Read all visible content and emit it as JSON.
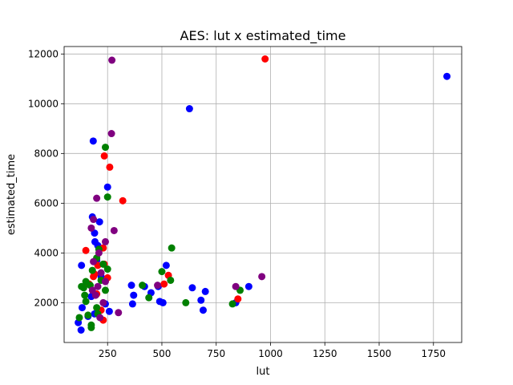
{
  "chart_data": {
    "type": "scatter",
    "title": "AES: lut x estimated_time",
    "xlabel": "lut",
    "ylabel": "estimated_time",
    "xlim": [
      50,
      1880
    ],
    "ylim": [
      400,
      12300
    ],
    "xticks": [
      250,
      500,
      750,
      1000,
      1250,
      1500,
      1750
    ],
    "yticks": [
      2000,
      4000,
      6000,
      8000,
      10000,
      12000
    ],
    "grid": true,
    "legend": "none",
    "series": [
      {
        "color": "#0000ff",
        "points": [
          [
            1812,
            11100
          ],
          [
            627,
            9800
          ],
          [
            184,
            8500
          ],
          [
            250,
            6650
          ],
          [
            213,
            5250
          ],
          [
            180,
            5450
          ],
          [
            192,
            4450
          ],
          [
            190,
            4800
          ],
          [
            130,
            3500
          ],
          [
            520,
            3500
          ],
          [
            360,
            2700
          ],
          [
            420,
            2650
          ],
          [
            370,
            2300
          ],
          [
            483,
            2650
          ],
          [
            640,
            2600
          ],
          [
            700,
            2450
          ],
          [
            900,
            2650
          ],
          [
            680,
            2100
          ],
          [
            490,
            2050
          ],
          [
            505,
            2000
          ],
          [
            690,
            1700
          ],
          [
            365,
            1950
          ],
          [
            240,
            1950
          ],
          [
            258,
            1650
          ],
          [
            133,
            1800
          ],
          [
            128,
            900
          ],
          [
            115,
            1200
          ],
          [
            190,
            1550
          ],
          [
            160,
            1450
          ],
          [
            175,
            2250
          ],
          [
            220,
            3050
          ],
          [
            200,
            3700
          ],
          [
            840,
            2000
          ],
          [
            450,
            2400
          ],
          [
            205,
            4300
          ]
        ]
      },
      {
        "color": "#ff0000",
        "points": [
          [
            975,
            11800
          ],
          [
            260,
            7450
          ],
          [
            235,
            7900
          ],
          [
            320,
            6100
          ],
          [
            150,
            4100
          ],
          [
            230,
            4200
          ],
          [
            205,
            3500
          ],
          [
            235,
            3550
          ],
          [
            190,
            3150
          ],
          [
            530,
            3100
          ],
          [
            250,
            3000
          ],
          [
            510,
            2750
          ],
          [
            850,
            2150
          ],
          [
            200,
            2350
          ],
          [
            220,
            1700
          ],
          [
            230,
            1300
          ],
          [
            165,
            2750
          ],
          [
            185,
            3050
          ]
        ]
      },
      {
        "color": "#008000",
        "points": [
          [
            240,
            8250
          ],
          [
            250,
            6250
          ],
          [
            210,
            4150
          ],
          [
            545,
            4200
          ],
          [
            200,
            3800
          ],
          [
            230,
            3550
          ],
          [
            250,
            3350
          ],
          [
            500,
            3250
          ],
          [
            540,
            2900
          ],
          [
            150,
            2850
          ],
          [
            140,
            2600
          ],
          [
            220,
            2900
          ],
          [
            410,
            2700
          ],
          [
            440,
            2200
          ],
          [
            610,
            2000
          ],
          [
            825,
            1950
          ],
          [
            860,
            2500
          ],
          [
            175,
            1100
          ],
          [
            120,
            1400
          ],
          [
            160,
            1500
          ],
          [
            200,
            1800
          ],
          [
            145,
            2300
          ],
          [
            180,
            3300
          ],
          [
            240,
            2500
          ],
          [
            150,
            2050
          ],
          [
            170,
            2700
          ],
          [
            205,
            1550
          ],
          [
            130,
            2650
          ],
          [
            175,
            1000
          ]
        ]
      },
      {
        "color": "#800080",
        "points": [
          [
            270,
            11750
          ],
          [
            268,
            8800
          ],
          [
            200,
            6200
          ],
          [
            185,
            5350
          ],
          [
            280,
            4900
          ],
          [
            175,
            5000
          ],
          [
            240,
            4450
          ],
          [
            185,
            3650
          ],
          [
            240,
            2850
          ],
          [
            205,
            2650
          ],
          [
            480,
            2700
          ],
          [
            180,
            2500
          ],
          [
            300,
            1600
          ],
          [
            215,
            1400
          ],
          [
            840,
            2650
          ],
          [
            960,
            3050
          ],
          [
            220,
            3200
          ],
          [
            195,
            2300
          ],
          [
            210,
            4000
          ],
          [
            230,
            2000
          ]
        ]
      }
    ]
  }
}
